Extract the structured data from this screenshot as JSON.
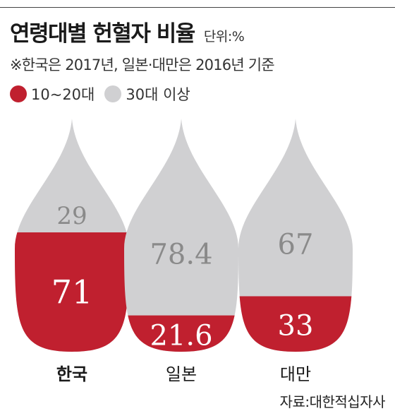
{
  "title": "연령대별 헌혈자 비율",
  "unit": "단위:%",
  "note": "※한국은 2017년, 일본·대만은 2016년 기준",
  "source": "자료:대한적십자사",
  "colors": {
    "young": "#c0202f",
    "old": "#d0d0d2",
    "value_on_old": "#8a8a8a",
    "value_on_young": "#ffffff"
  },
  "chart_data": {
    "type": "bar",
    "style": "stacked-drop",
    "categories": [
      "한국",
      "일본",
      "대만"
    ],
    "bold_category": "한국",
    "series": [
      {
        "name": "10~20대",
        "values": [
          71,
          21.6,
          33
        ]
      },
      {
        "name": "30대 이상",
        "values": [
          29,
          78.4,
          67
        ]
      }
    ],
    "value_labels": {
      "10~20대": [
        "71",
        "21.6",
        "33"
      ],
      "30대 이상": [
        "29",
        "78.4",
        "67"
      ]
    },
    "legend_position": "top-left",
    "ylim": [
      0,
      100
    ]
  }
}
